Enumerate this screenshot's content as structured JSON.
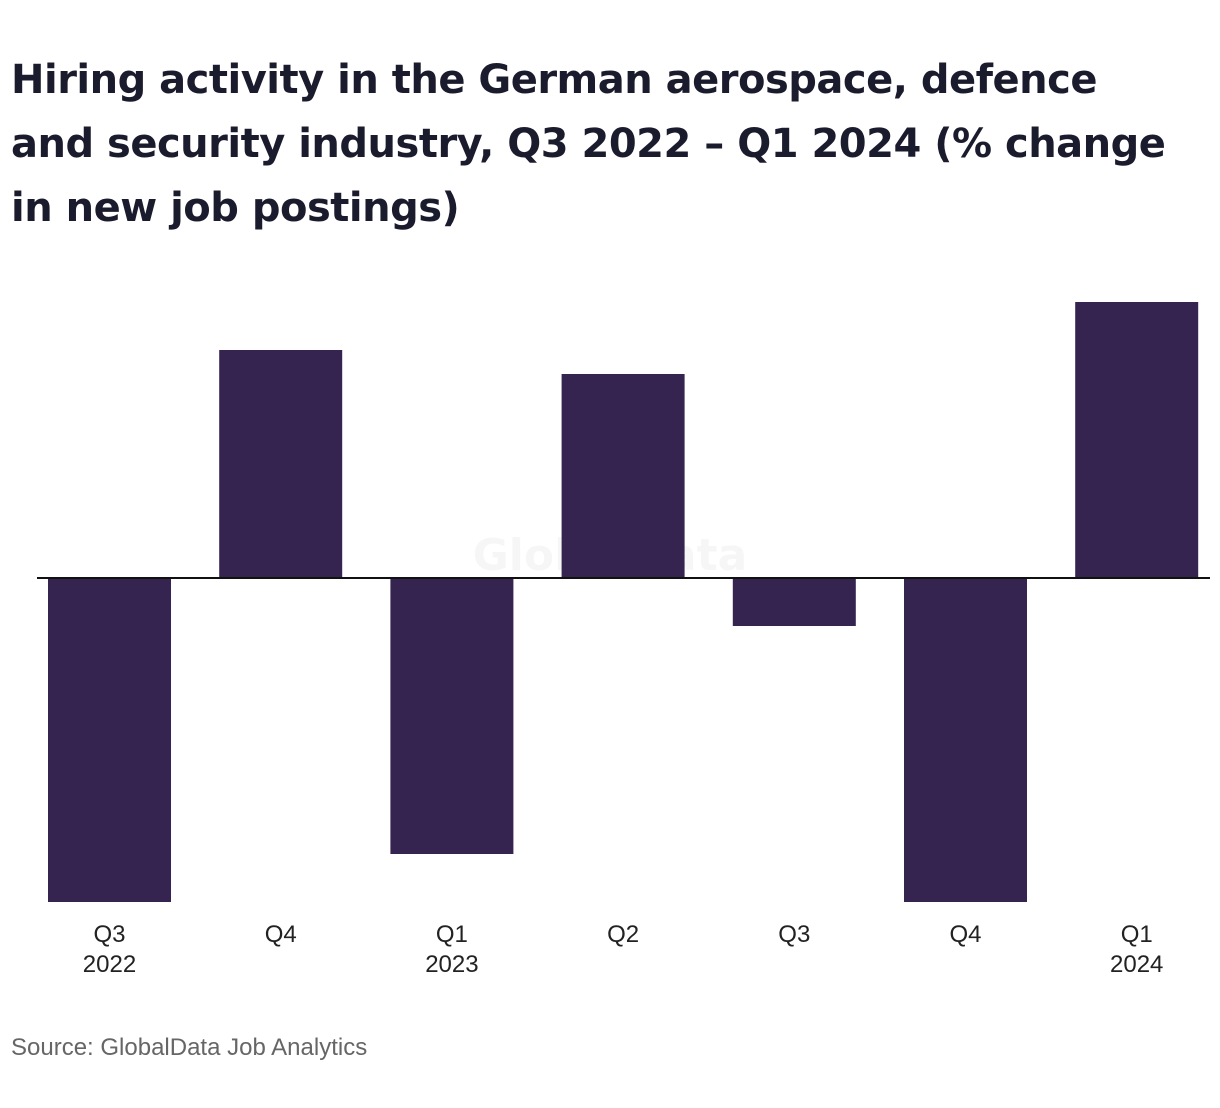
{
  "watermark": "GlobalData",
  "source": "Source: GlobalData Job Analytics",
  "chart_data": {
    "type": "bar",
    "title": "Hiring activity in the German aerospace, defence and security industry, Q3 2022 – Q1 2024 (% change in new job postings)",
    "categories": [
      {
        "line1": "Q3",
        "line2": "2022"
      },
      {
        "line1": "Q4",
        "line2": ""
      },
      {
        "line1": "Q1",
        "line2": "2023"
      },
      {
        "line1": "Q2",
        "line2": ""
      },
      {
        "line1": "Q3",
        "line2": ""
      },
      {
        "line1": "Q4",
        "line2": ""
      },
      {
        "line1": "Q1",
        "line2": "2024"
      }
    ],
    "values": [
      -13.5,
      9.5,
      -11.5,
      8.5,
      -2,
      -13.5,
      11.5
    ],
    "ylim": [
      -13.5,
      11.5
    ],
    "grid": false,
    "legend": "none",
    "bar_color": "#352450",
    "zero_line_color": "#111111"
  }
}
